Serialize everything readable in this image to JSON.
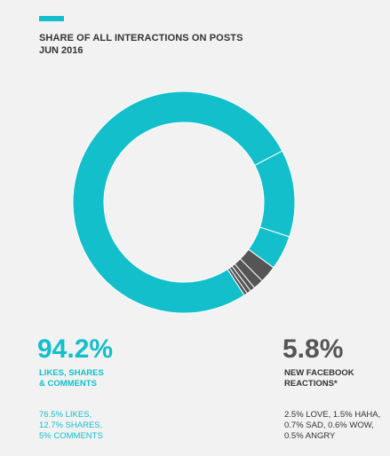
{
  "header": {
    "title": "SHARE OF ALL INTERACTIONS ON POSTS",
    "subtitle": "JUN 2016"
  },
  "colors": {
    "accent": "#12bfcb",
    "reactions": "#555555",
    "background": "#f2f2f2"
  },
  "chart_data": {
    "type": "pie",
    "title": "SHARE OF ALL INTERACTIONS ON POSTS",
    "subtitle": "JUN 2016",
    "categories": [
      "LIKES",
      "SHARES",
      "COMMENTS",
      "LOVE",
      "HAHA",
      "SAD",
      "WOW",
      "ANGRY"
    ],
    "values": [
      76.5,
      12.7,
      5.0,
      2.5,
      1.5,
      0.7,
      0.6,
      0.5
    ],
    "groups": [
      "likes",
      "likes",
      "likes",
      "reactions",
      "reactions",
      "reactions",
      "reactions",
      "reactions"
    ]
  },
  "summary": {
    "left": {
      "value": "94.2%",
      "label_lines": [
        "LIKES, SHARES",
        "& COMMENTS"
      ],
      "detail_lines": [
        "76.5% LIKES,",
        "12.7% SHARES,",
        "5% COMMENTS"
      ]
    },
    "right": {
      "value": "5.8%",
      "label_lines": [
        "NEW FACEBOOK",
        "REACTIONS*"
      ],
      "detail_lines": [
        "2.5% LOVE, 1.5% HAHA,",
        "0.7% SAD, 0.6% WOW,",
        "0.5% ANGRY"
      ]
    }
  }
}
